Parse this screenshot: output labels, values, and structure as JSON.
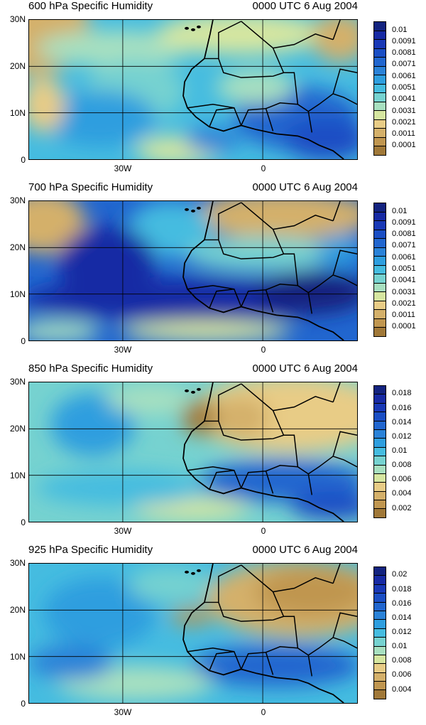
{
  "palette": [
    "#a07838",
    "#c09650",
    "#d4b06a",
    "#e8cc86",
    "#d6e6a0",
    "#a8e0c0",
    "#76d2d0",
    "#45bce0",
    "#2e9edf",
    "#2a82d8",
    "#2166cf",
    "#1a4ec4",
    "#1838b6",
    "#172aa4",
    "#13237f"
  ],
  "panels": [
    {
      "title_left": "600 hPa Specific Humidity",
      "title_right": "0000 UTC 6 Aug 2004",
      "y_labels": [
        "30N",
        "20N",
        "10N",
        "0"
      ],
      "x_labels": [
        "30W",
        "0"
      ],
      "colorbar_labels": [
        "0.01",
        "0.0091",
        "0.0081",
        "0.0071",
        "0.0061",
        "0.0051",
        "0.0041",
        "0.0031",
        "0.0021",
        "0.0011",
        "0.0001"
      ],
      "colorbar_colors": [
        "#13237f",
        "#172aa4",
        "#1838b6",
        "#1a4ec4",
        "#2166cf",
        "#2a82d8",
        "#2e9edf",
        "#45bce0",
        "#76d2d0",
        "#a8e0c0",
        "#d6e6a0",
        "#e8cc86",
        "#d4b06a",
        "#c09650",
        "#a07838"
      ],
      "base_color": "#45bce0",
      "blobs": [
        {
          "cx": 5,
          "cy": 8,
          "rx": 80,
          "ry": 70,
          "c": "#d4b06a"
        },
        {
          "cx": 120,
          "cy": 40,
          "rx": 110,
          "ry": 25,
          "c": "#a8e0c0"
        },
        {
          "cx": 300,
          "cy": 20,
          "rx": 120,
          "ry": 30,
          "c": "#d6e6a0"
        },
        {
          "cx": 440,
          "cy": 25,
          "rx": 40,
          "ry": 35,
          "c": "#d4b06a"
        },
        {
          "cx": 150,
          "cy": 100,
          "rx": 70,
          "ry": 45,
          "c": "#76d2d0"
        },
        {
          "cx": 100,
          "cy": 140,
          "rx": 80,
          "ry": 40,
          "c": "#2e9edf"
        },
        {
          "cx": 380,
          "cy": 140,
          "rx": 90,
          "ry": 45,
          "c": "#2166cf"
        },
        {
          "cx": 420,
          "cy": 170,
          "rx": 60,
          "ry": 30,
          "c": "#1a4ec4"
        },
        {
          "cx": 210,
          "cy": 185,
          "rx": 60,
          "ry": 20,
          "c": "#d6e6a0"
        },
        {
          "cx": 320,
          "cy": 95,
          "rx": 55,
          "ry": 25,
          "c": "#a8e0c0"
        },
        {
          "cx": 20,
          "cy": 120,
          "rx": 30,
          "ry": 40,
          "c": "#e8cc86"
        },
        {
          "cx": 260,
          "cy": 170,
          "rx": 40,
          "ry": 18,
          "c": "#2a82d8"
        }
      ]
    },
    {
      "title_left": "700 hPa Specific Humidity",
      "title_right": "0000 UTC 6 Aug 2004",
      "y_labels": [
        "30N",
        "20N",
        "10N",
        "0"
      ],
      "x_labels": [
        "30W",
        "0"
      ],
      "colorbar_labels": [
        "0.01",
        "0.0091",
        "0.0081",
        "0.0071",
        "0.0061",
        "0.0051",
        "0.0041",
        "0.0031",
        "0.0021",
        "0.0011",
        "0.0001"
      ],
      "colorbar_colors": [
        "#13237f",
        "#172aa4",
        "#1838b6",
        "#1a4ec4",
        "#2166cf",
        "#2a82d8",
        "#2e9edf",
        "#45bce0",
        "#76d2d0",
        "#a8e0c0",
        "#d6e6a0",
        "#e8cc86",
        "#d4b06a",
        "#c09650",
        "#a07838"
      ],
      "base_color": "#2166cf",
      "blobs": [
        {
          "cx": 20,
          "cy": 30,
          "rx": 60,
          "ry": 45,
          "c": "#d4b06a"
        },
        {
          "cx": 360,
          "cy": 20,
          "rx": 130,
          "ry": 35,
          "c": "#d4b06a"
        },
        {
          "cx": 200,
          "cy": 40,
          "rx": 60,
          "ry": 40,
          "c": "#45bce0"
        },
        {
          "cx": 330,
          "cy": 75,
          "rx": 110,
          "ry": 25,
          "c": "#76d2d0"
        },
        {
          "cx": 110,
          "cy": 90,
          "rx": 70,
          "ry": 55,
          "c": "#172aa4"
        },
        {
          "cx": 230,
          "cy": 140,
          "rx": 240,
          "ry": 30,
          "c": "#172aa4"
        },
        {
          "cx": 400,
          "cy": 130,
          "rx": 80,
          "ry": 30,
          "c": "#13237f"
        },
        {
          "cx": 250,
          "cy": 185,
          "rx": 120,
          "ry": 15,
          "c": "#d6e6a0"
        },
        {
          "cx": 40,
          "cy": 185,
          "rx": 60,
          "ry": 15,
          "c": "#a8e0c0"
        },
        {
          "cx": 440,
          "cy": 70,
          "rx": 30,
          "ry": 25,
          "c": "#2e9edf"
        }
      ]
    },
    {
      "title_left": "850 hPa Specific Humidity",
      "title_right": "0000 UTC 6 Aug 2004",
      "y_labels": [
        "30N",
        "20N",
        "10N",
        "0"
      ],
      "x_labels": [
        "30W",
        "0"
      ],
      "colorbar_labels": [
        "0.018",
        "0.016",
        "0.014",
        "0.012",
        "0.01",
        "0.008",
        "0.006",
        "0.004",
        "0.002"
      ],
      "colorbar_colors": [
        "#13237f",
        "#172aa4",
        "#1838b6",
        "#1a4ec4",
        "#2166cf",
        "#2a82d8",
        "#2e9edf",
        "#45bce0",
        "#76d2d0",
        "#a8e0c0",
        "#d6e6a0",
        "#e8cc86",
        "#d4b06a",
        "#c09650",
        "#a07838"
      ],
      "base_color": "#76d2d0",
      "blobs": [
        {
          "cx": 90,
          "cy": 60,
          "rx": 60,
          "ry": 45,
          "c": "#2e9edf"
        },
        {
          "cx": 370,
          "cy": 45,
          "rx": 140,
          "ry": 55,
          "c": "#e8cc86"
        },
        {
          "cx": 245,
          "cy": 50,
          "rx": 30,
          "ry": 25,
          "c": "#a07838"
        },
        {
          "cx": 300,
          "cy": 50,
          "rx": 40,
          "ry": 30,
          "c": "#d4b06a"
        },
        {
          "cx": 360,
          "cy": 140,
          "rx": 120,
          "ry": 30,
          "c": "#2166cf"
        },
        {
          "cx": 430,
          "cy": 175,
          "rx": 60,
          "ry": 20,
          "c": "#1a4ec4"
        },
        {
          "cx": 230,
          "cy": 180,
          "rx": 80,
          "ry": 15,
          "c": "#d6e6a0"
        },
        {
          "cx": 170,
          "cy": 25,
          "rx": 60,
          "ry": 20,
          "c": "#a8e0c0"
        },
        {
          "cx": 130,
          "cy": 150,
          "rx": 120,
          "ry": 25,
          "c": "#45bce0"
        }
      ]
    },
    {
      "title_left": "925 hPa Specific Humidity",
      "title_right": "0000 UTC 6 Aug 2004",
      "y_labels": [
        "30N",
        "20N",
        "10N",
        "0"
      ],
      "x_labels": [
        "30W",
        "0"
      ],
      "colorbar_labels": [
        "0.02",
        "0.018",
        "0.016",
        "0.014",
        "0.012",
        "0.01",
        "0.008",
        "0.006",
        "0.004"
      ],
      "colorbar_colors": [
        "#13237f",
        "#172aa4",
        "#1838b6",
        "#1a4ec4",
        "#2166cf",
        "#2a82d8",
        "#2e9edf",
        "#45bce0",
        "#76d2d0",
        "#a8e0c0",
        "#d6e6a0",
        "#e8cc86",
        "#d4b06a",
        "#c09650",
        "#a07838"
      ],
      "base_color": "#45bce0",
      "blobs": [
        {
          "cx": 100,
          "cy": 70,
          "rx": 80,
          "ry": 50,
          "c": "#2e9edf"
        },
        {
          "cx": 380,
          "cy": 50,
          "rx": 130,
          "ry": 55,
          "c": "#d4b06a"
        },
        {
          "cx": 400,
          "cy": 40,
          "rx": 80,
          "ry": 35,
          "c": "#c09650"
        },
        {
          "cx": 230,
          "cy": 75,
          "rx": 30,
          "ry": 12,
          "c": "#c09650"
        },
        {
          "cx": 350,
          "cy": 145,
          "rx": 120,
          "ry": 30,
          "c": "#2166cf"
        },
        {
          "cx": 200,
          "cy": 30,
          "rx": 60,
          "ry": 25,
          "c": "#76d2d0"
        },
        {
          "cx": 150,
          "cy": 170,
          "rx": 110,
          "ry": 25,
          "c": "#a8e0c0"
        },
        {
          "cx": 60,
          "cy": 140,
          "rx": 60,
          "ry": 25,
          "c": "#2a82d8"
        }
      ]
    }
  ]
}
